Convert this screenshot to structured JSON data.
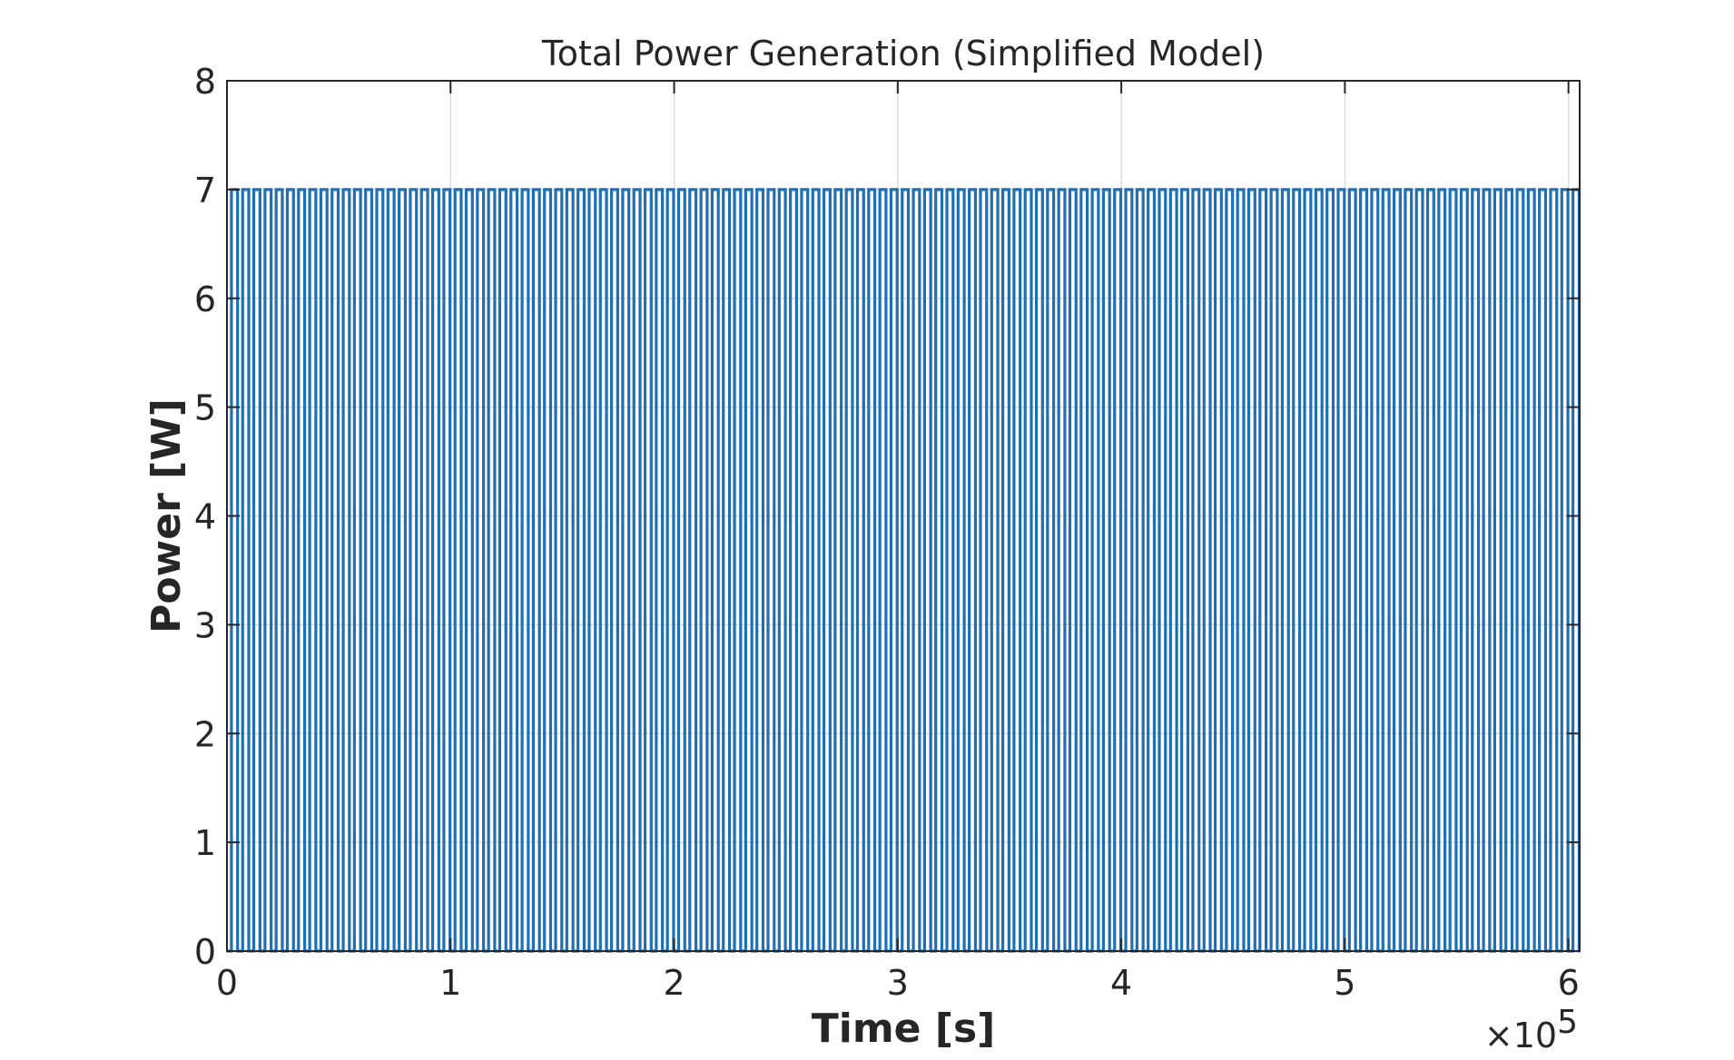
{
  "chart_data": {
    "type": "line",
    "title": "Total Power Generation (Simplified Model)",
    "xlabel": "Time [s]",
    "ylabel": "Power [W]",
    "x_exponent_label": "×10",
    "x_exponent_power": "5",
    "xlim": [
      0,
      6.05
    ],
    "ylim": [
      0,
      8
    ],
    "x_ticks": [
      "0",
      "1",
      "2",
      "3",
      "4",
      "5",
      "6"
    ],
    "y_ticks": [
      "0",
      "1",
      "2",
      "3",
      "4",
      "5",
      "6",
      "7",
      "8"
    ],
    "grid": true,
    "series": [
      {
        "pattern": "square-wave",
        "low": 0,
        "high": 7,
        "x_start": 0.02,
        "period": 0.05,
        "high_fraction": 0.55,
        "cycles": 121,
        "color": "#1f6fb5"
      }
    ]
  }
}
